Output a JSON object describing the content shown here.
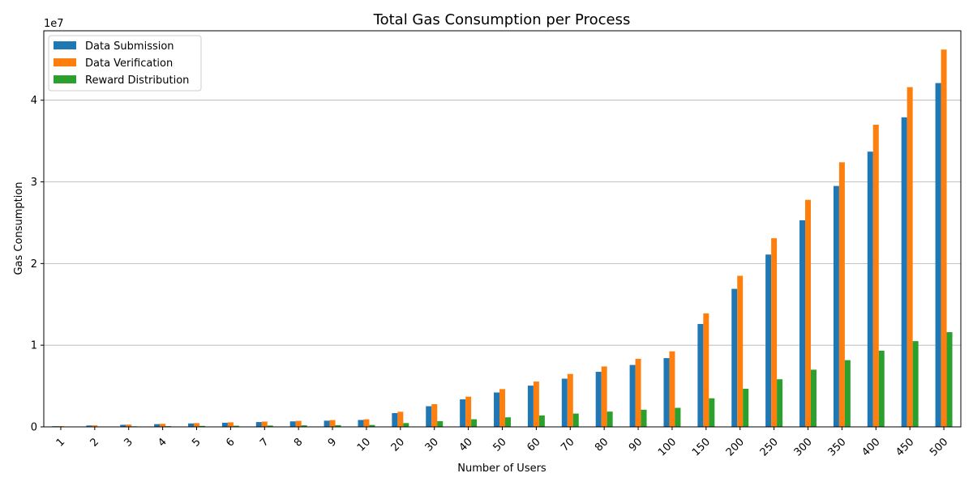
{
  "chart_data": {
    "type": "bar",
    "title": "Total Gas Consumption per Process",
    "xlabel": "Number of Users",
    "ylabel": "Gas Consumption",
    "y_scale_label": "1e7",
    "y_scale": 10000000,
    "ylim": [
      0,
      48500000
    ],
    "yticks": [
      0,
      10000000,
      20000000,
      30000000,
      40000000
    ],
    "ytick_labels": [
      "0",
      "1",
      "2",
      "3",
      "4"
    ],
    "grid": "y",
    "legend_position": "top-left",
    "categories": [
      "1",
      "2",
      "3",
      "4",
      "5",
      "6",
      "7",
      "8",
      "9",
      "10",
      "20",
      "30",
      "40",
      "50",
      "60",
      "70",
      "80",
      "90",
      "100",
      "150",
      "200",
      "250",
      "300",
      "350",
      "400",
      "450",
      "500"
    ],
    "series": [
      {
        "name": "Data Submission",
        "color": "#1f77b4",
        "values": [
          84000,
          168000,
          253000,
          337000,
          421000,
          505000,
          590000,
          674000,
          758000,
          842000,
          1690000,
          2530000,
          3370000,
          4210000,
          5050000,
          5900000,
          6740000,
          7580000,
          8420000,
          12600000,
          16900000,
          21100000,
          25300000,
          29500000,
          33700000,
          37900000,
          42100000
        ]
      },
      {
        "name": "Data Verification",
        "color": "#ff7f0e",
        "values": [
          93000,
          185000,
          278000,
          370000,
          463000,
          555000,
          648000,
          740000,
          833000,
          925000,
          1850000,
          2780000,
          3700000,
          4630000,
          5550000,
          6480000,
          7400000,
          8330000,
          9250000,
          13900000,
          18500000,
          23100000,
          27800000,
          32400000,
          37000000,
          41600000,
          46200000
        ]
      },
      {
        "name": "Reward Distribution",
        "color": "#2ca02c",
        "values": [
          23000,
          47000,
          70000,
          93000,
          117000,
          140000,
          163000,
          187000,
          210000,
          233000,
          467000,
          700000,
          933000,
          1170000,
          1400000,
          1630000,
          1870000,
          2100000,
          2330000,
          3500000,
          4670000,
          5830000,
          7000000,
          8170000,
          9330000,
          10500000,
          11600000
        ]
      }
    ]
  }
}
